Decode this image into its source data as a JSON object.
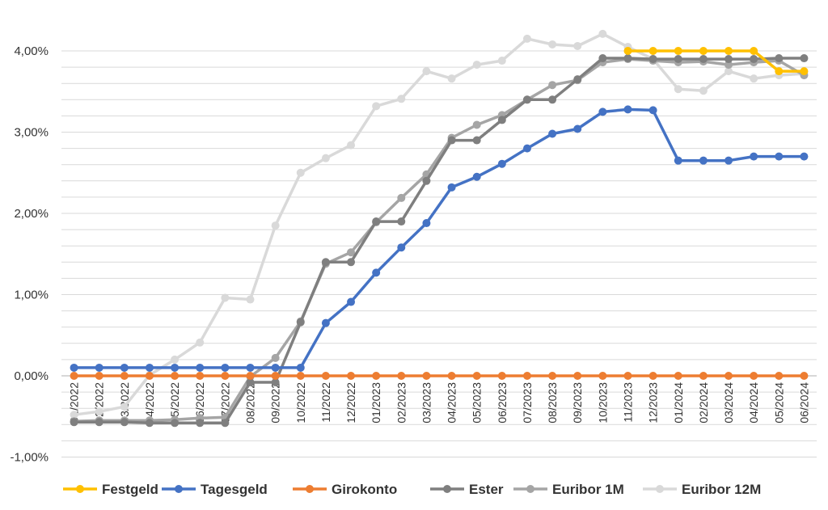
{
  "chart_data": {
    "type": "line",
    "title": "",
    "xlabel": "",
    "ylabel": "",
    "ylim": [
      -1.0,
      4.0
    ],
    "y_tick_labels": [
      "-1,00%",
      "0,00%",
      "1,00%",
      "2,00%",
      "3,00%",
      "4,00%"
    ],
    "y_tick_values": [
      -1.0,
      0.0,
      1.0,
      2.0,
      3.0,
      4.0
    ],
    "grid": "horizontal",
    "legend_position": "bottom",
    "categories": [
      "01/2022",
      "02/2022",
      "03/2022",
      "04/2022",
      "05/2022",
      "06/2022",
      "07/2022",
      "08/2022",
      "09/2022",
      "10/2022",
      "11/2022",
      "12/2022",
      "01/2023",
      "02/2023",
      "03/2023",
      "04/2023",
      "05/2023",
      "06/2023",
      "07/2023",
      "08/2023",
      "09/2023",
      "10/2023",
      "11/2023",
      "12/2023",
      "01/2024",
      "02/2024",
      "03/2024",
      "04/2024",
      "05/2024",
      "06/2024"
    ],
    "series": [
      {
        "name": "Festgeld",
        "color": "#FFC000",
        "values": [
          null,
          null,
          null,
          null,
          null,
          null,
          null,
          null,
          null,
          null,
          null,
          null,
          null,
          null,
          null,
          null,
          null,
          null,
          null,
          null,
          null,
          null,
          4.0,
          4.0,
          4.0,
          4.0,
          4.0,
          4.0,
          3.75,
          3.75
        ]
      },
      {
        "name": "Tagesgeld",
        "color": "#4472C4",
        "values": [
          0.1,
          0.1,
          0.1,
          0.1,
          0.1,
          0.1,
          0.1,
          0.1,
          0.1,
          0.1,
          0.65,
          0.91,
          1.27,
          1.58,
          1.88,
          2.32,
          2.45,
          2.61,
          2.8,
          2.98,
          3.04,
          3.25,
          3.28,
          3.27,
          2.65,
          2.65,
          2.65,
          2.7,
          2.7,
          2.7
        ]
      },
      {
        "name": "Girokonto",
        "color": "#ED7D31",
        "values": [
          0.0,
          0.0,
          0.0,
          0.0,
          0.0,
          0.0,
          0.0,
          0.0,
          0.0,
          0.0,
          0.0,
          0.0,
          0.0,
          0.0,
          0.0,
          0.0,
          0.0,
          0.0,
          0.0,
          0.0,
          0.0,
          0.0,
          0.0,
          0.0,
          0.0,
          0.0,
          0.0,
          0.0,
          0.0,
          0.0
        ]
      },
      {
        "name": "Ester",
        "color": "#7F7F7F",
        "values": [
          -0.57,
          -0.57,
          -0.57,
          -0.58,
          -0.58,
          -0.58,
          -0.58,
          -0.08,
          -0.08,
          0.66,
          1.4,
          1.4,
          1.9,
          1.9,
          2.4,
          2.9,
          2.9,
          3.15,
          3.4,
          3.4,
          3.65,
          3.91,
          3.91,
          3.9,
          3.9,
          3.9,
          3.9,
          3.9,
          3.91,
          3.91
        ]
      },
      {
        "name": "Euribor 1M",
        "color": "#A5A5A5",
        "values": [
          -0.56,
          -0.55,
          -0.55,
          -0.55,
          -0.54,
          -0.52,
          -0.51,
          -0.01,
          0.22,
          0.67,
          1.38,
          1.52,
          1.89,
          2.19,
          2.48,
          2.93,
          3.09,
          3.21,
          3.4,
          3.58,
          3.64,
          3.86,
          3.9,
          3.88,
          3.86,
          3.87,
          3.83,
          3.86,
          3.88,
          3.7
        ]
      },
      {
        "name": "Euribor 12M",
        "color": "#D9D9D9",
        "values": [
          -0.48,
          -0.44,
          -0.38,
          0.01,
          0.2,
          0.41,
          0.96,
          0.94,
          1.85,
          2.5,
          2.68,
          2.84,
          3.32,
          3.41,
          3.75,
          3.66,
          3.83,
          3.88,
          4.15,
          4.08,
          4.06,
          4.21,
          4.05,
          3.9,
          3.53,
          3.51,
          3.75,
          3.66,
          3.7,
          3.72
        ]
      }
    ]
  }
}
